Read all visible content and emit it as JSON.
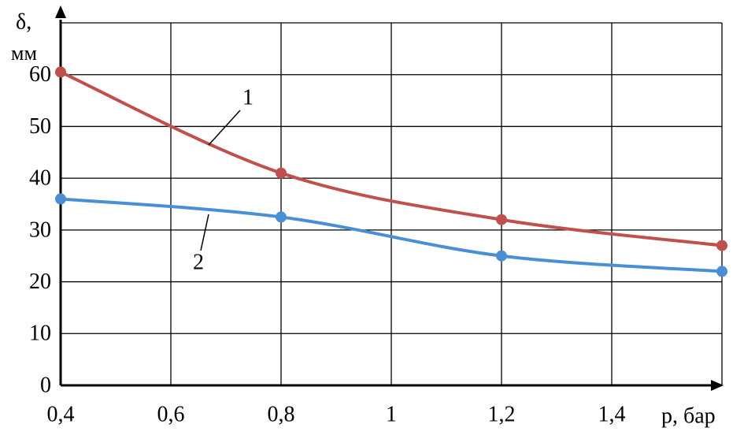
{
  "chart_data": {
    "type": "line",
    "ylabel": [
      "δ,",
      "мм"
    ],
    "xlabel": "p, бар",
    "x": [
      0.4,
      0.8,
      1.2,
      1.6
    ],
    "series": [
      {
        "name": "1",
        "color": "#c0504d",
        "values": [
          60.5,
          41,
          32,
          27
        ]
      },
      {
        "name": "2",
        "color": "#4a8fd6",
        "values": [
          36,
          32.5,
          25,
          22
        ]
      }
    ],
    "xlim": [
      0.4,
      1.6
    ],
    "xticks": [
      {
        "value": 0.4,
        "label": "0,4"
      },
      {
        "value": 0.6,
        "label": "0,6"
      },
      {
        "value": 0.8,
        "label": "0,8"
      },
      1,
      {
        "value": 1.2,
        "label": "1,2"
      },
      {
        "value": 1.4,
        "label": "1,4"
      }
    ],
    "ylim": [
      0,
      70
    ],
    "yticks": [
      0,
      10,
      20,
      30,
      40,
      50,
      60
    ],
    "grid": true
  }
}
